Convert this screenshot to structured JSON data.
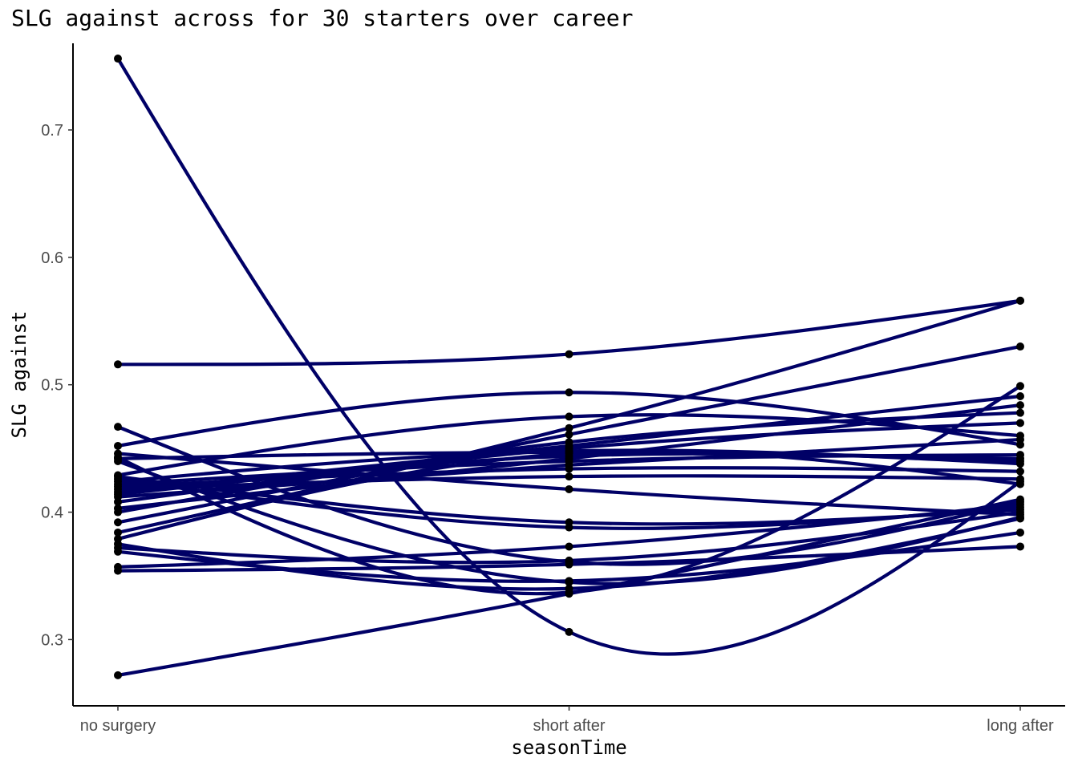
{
  "chart_data": {
    "type": "line",
    "title": "SLG against across for 30 starters over career",
    "xlabel": "seasonTime",
    "ylabel": "SLG against",
    "categories": [
      "no surgery",
      "short after",
      "long after"
    ],
    "ylim": [
      0.248,
      0.768
    ],
    "yticks": [
      0.3,
      0.4,
      0.5,
      0.6,
      0.7
    ],
    "grid": false,
    "legend": "none",
    "line_style": "smoothed spline",
    "colors": {
      "line": "#000066",
      "point": "#000000",
      "axis": "#000000",
      "tick_text": "#4d4d4d"
    },
    "series": [
      {
        "values": [
          0.756,
          0.306,
          0.424
        ]
      },
      {
        "values": [
          0.516,
          0.524,
          0.566
        ]
      },
      {
        "values": [
          0.467,
          0.361,
          0.408
        ]
      },
      {
        "values": [
          0.452,
          0.494,
          0.453
        ]
      },
      {
        "values": [
          0.443,
          0.337,
          0.499
        ]
      },
      {
        "values": [
          0.44,
          0.345,
          0.396
        ]
      },
      {
        "values": [
          0.446,
          0.418,
          0.398
        ]
      },
      {
        "values": [
          0.442,
          0.447,
          0.442
        ]
      },
      {
        "values": [
          0.429,
          0.475,
          0.46
        ]
      },
      {
        "values": [
          0.428,
          0.392,
          0.402
        ]
      },
      {
        "values": [
          0.426,
          0.388,
          0.404
        ]
      },
      {
        "values": [
          0.424,
          0.448,
          0.438
        ]
      },
      {
        "values": [
          0.422,
          0.44,
          0.445
        ]
      },
      {
        "values": [
          0.42,
          0.434,
          0.432
        ]
      },
      {
        "values": [
          0.418,
          0.428,
          0.426
        ]
      },
      {
        "values": [
          0.416,
          0.452,
          0.491
        ]
      },
      {
        "values": [
          0.414,
          0.444,
          0.44
        ]
      },
      {
        "values": [
          0.412,
          0.437,
          0.457
        ]
      },
      {
        "values": [
          0.408,
          0.45,
          0.47
        ]
      },
      {
        "values": [
          0.403,
          0.442,
          0.484
        ]
      },
      {
        "values": [
          0.4,
          0.455,
          0.478
        ]
      },
      {
        "values": [
          0.392,
          0.461,
          0.53
        ]
      },
      {
        "values": [
          0.384,
          0.466,
          0.566
        ]
      },
      {
        "values": [
          0.379,
          0.446,
          0.422
        ]
      },
      {
        "values": [
          0.375,
          0.34,
          0.395
        ]
      },
      {
        "values": [
          0.372,
          0.362,
          0.4
        ]
      },
      {
        "values": [
          0.369,
          0.346,
          0.384
        ]
      },
      {
        "values": [
          0.357,
          0.373,
          0.406
        ]
      },
      {
        "values": [
          0.354,
          0.359,
          0.373
        ]
      },
      {
        "values": [
          0.272,
          0.336,
          0.41
        ]
      }
    ]
  }
}
